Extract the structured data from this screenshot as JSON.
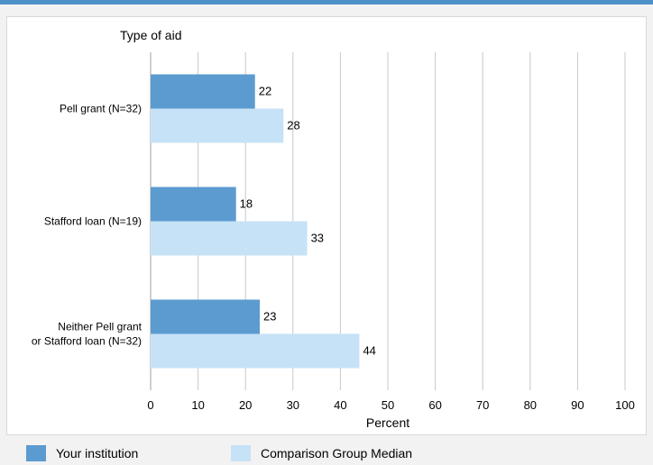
{
  "chart_data": {
    "type": "bar",
    "orientation": "horizontal",
    "y_axis_title": "Type of aid",
    "xlabel": "Percent",
    "categories": [
      [
        "Pell grant  (N=32)"
      ],
      [
        "Stafford loan (N=19)"
      ],
      [
        "Neither Pell grant",
        "or Stafford loan (N=32)"
      ]
    ],
    "series": [
      {
        "name": "Your institution",
        "color": "#5b9bd0",
        "values": [
          22,
          18,
          23
        ]
      },
      {
        "name": "Comparison Group Median",
        "color": "#c6e2f6",
        "values": [
          28,
          33,
          44
        ]
      }
    ],
    "xlim": [
      0,
      100
    ],
    "xticks": [
      0,
      10,
      20,
      30,
      40,
      50,
      60,
      70,
      80,
      90,
      100
    ],
    "grid": true,
    "legend_position": "bottom"
  }
}
